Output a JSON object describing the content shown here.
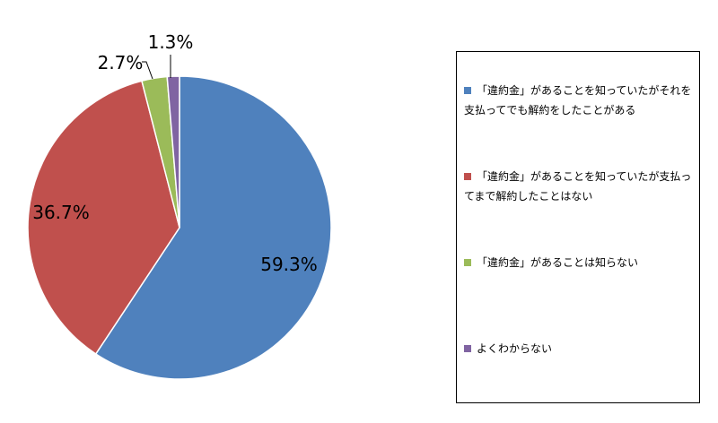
{
  "chart_data": {
    "type": "pie",
    "slices": [
      {
        "label": "「違約金」があることを知っていたがそれを支払ってでも解約をしたことがある",
        "value": 59.3,
        "value_label": "59.3%",
        "color": "#4f81bd"
      },
      {
        "label": "「違約金」があることを知っていたが支払ってまで解約したことはない",
        "value": 36.7,
        "value_label": "36.7%",
        "color": "#c0504d"
      },
      {
        "label": "「違約金」があることは知らない",
        "value": 2.7,
        "value_label": "2.7%",
        "color": "#9bbb59"
      },
      {
        "label": "よくわからない",
        "value": 1.3,
        "value_label": "1.3%",
        "color": "#8064a2"
      }
    ],
    "start_angle": "12 o'clock",
    "direction": "clockwise",
    "legend_position": "right"
  }
}
